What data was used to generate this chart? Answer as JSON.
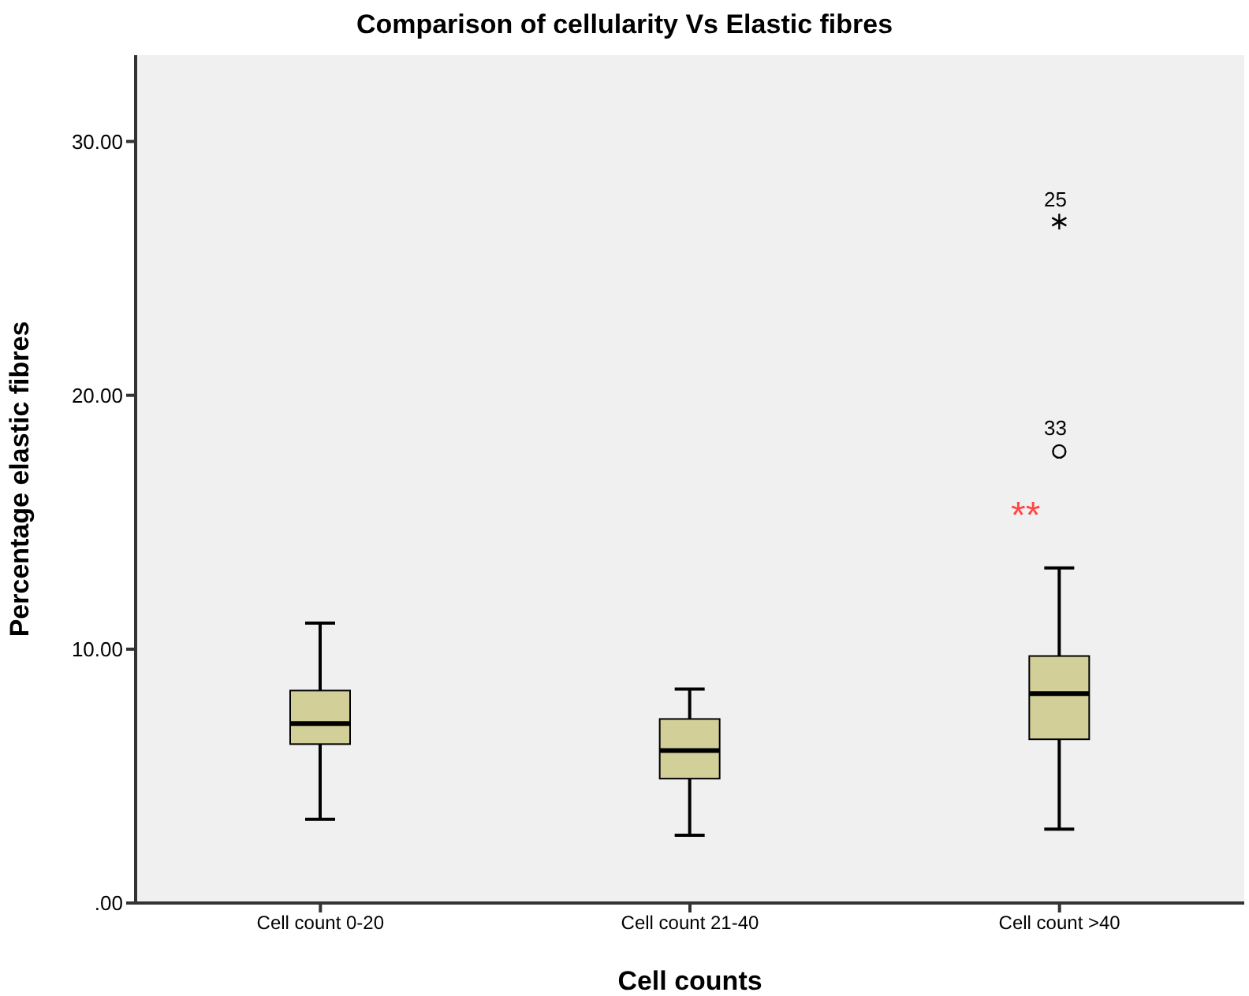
{
  "chart_data": {
    "type": "box",
    "title": "Comparison of cellularity Vs Elastic fibres",
    "xlabel": "Cell counts",
    "ylabel": "Percentage elastic fibres",
    "categories": [
      "Cell count 0-20",
      "Cell count 21-40",
      "Cell count >40"
    ],
    "color": "#d3cf99",
    "boxes": [
      {
        "low": 3.3,
        "q1": 6.26,
        "median": 7.07,
        "q3": 8.37,
        "high": 11.03
      },
      {
        "low": 2.67,
        "q1": 4.9,
        "median": 6.01,
        "q3": 7.25,
        "high": 8.43
      },
      {
        "low": 2.91,
        "q1": 6.45,
        "median": 8.25,
        "q3": 9.73,
        "high": 13.2,
        "outliers": [
          17.79,
          26.84
        ]
      }
    ],
    "ylim": [
      0,
      33.4
    ],
    "yticks": [
      {
        "value": 0,
        "label": ".00"
      },
      {
        "value": 10,
        "label": "10.00"
      },
      {
        "value": 20,
        "label": "20.00"
      },
      {
        "value": 30,
        "label": "30.00"
      }
    ],
    "annotations": [
      "25",
      "33",
      "**"
    ]
  }
}
